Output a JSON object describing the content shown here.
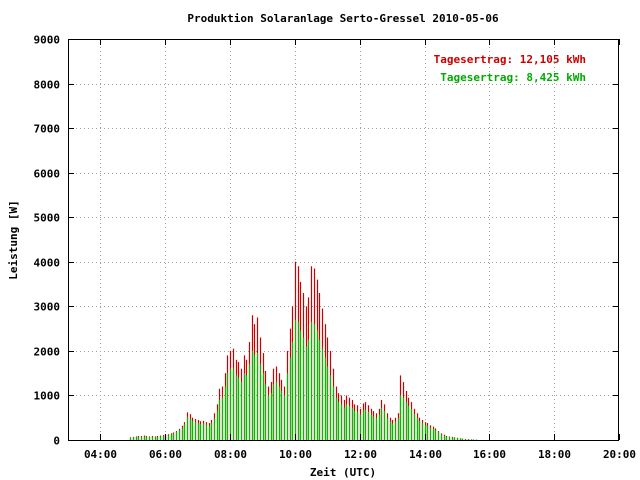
{
  "chart_data": {
    "type": "bar",
    "title": "Produktion Solaranlage Serto-Gressel 2010-05-06",
    "xlabel": "Zeit (UTC)",
    "ylabel": "Leistung [W]",
    "ylim": [
      0,
      9000
    ],
    "yticks": [
      0,
      1000,
      2000,
      3000,
      4000,
      5000,
      6000,
      7000,
      8000,
      9000
    ],
    "xlim_hours": [
      3,
      20
    ],
    "xtick_labels": [
      "04:00",
      "06:00",
      "08:00",
      "10:00",
      "12:00",
      "14:00",
      "16:00",
      "18:00",
      "20:00"
    ],
    "xtick_hours": [
      4,
      6,
      8,
      10,
      12,
      14,
      16,
      18,
      20
    ],
    "grid": true,
    "legend_placement": "top-right",
    "sample_interval_minutes": 5,
    "series": [
      {
        "name": "Tagesertrag: 12,105 kWh",
        "color": "#cc0000",
        "start_hour": 4.92,
        "values": [
          60,
          70,
          80,
          90,
          90,
          100,
          90,
          80,
          90,
          80,
          90,
          100,
          110,
          120,
          130,
          150,
          170,
          200,
          250,
          320,
          400,
          620,
          580,
          500,
          470,
          450,
          420,
          430,
          400,
          380,
          450,
          600,
          800,
          1150,
          1200,
          1500,
          1900,
          2000,
          2050,
          1800,
          1750,
          1600,
          1900,
          1800,
          2200,
          2800,
          2600,
          2750,
          2300,
          1950,
          1550,
          1200,
          1300,
          1600,
          1650,
          1500,
          1350,
          1200,
          2000,
          2500,
          3000,
          4000,
          3900,
          3550,
          3300,
          3000,
          3200,
          3900,
          3850,
          3600,
          3300,
          2950,
          2600,
          2300,
          2000,
          1600,
          1200,
          1050,
          1000,
          900,
          1000,
          950,
          900,
          800,
          780,
          700,
          820,
          850,
          780,
          700,
          650,
          600,
          700,
          900,
          800,
          600,
          500,
          450,
          500,
          600,
          1450,
          1300,
          1100,
          950,
          850,
          700,
          600,
          500,
          450,
          400,
          380,
          330,
          300,
          260,
          200,
          150,
          120,
          90,
          80,
          70,
          60,
          50,
          40,
          30,
          25,
          20,
          15,
          10,
          8
        ]
      },
      {
        "name": "Tagesertrag: 8,425 kWh",
        "color": "#00bb00",
        "start_hour": 4.92,
        "values": [
          50,
          60,
          65,
          70,
          70,
          75,
          70,
          65,
          70,
          65,
          70,
          80,
          90,
          100,
          110,
          130,
          150,
          180,
          220,
          280,
          350,
          520,
          480,
          420,
          400,
          380,
          360,
          370,
          340,
          320,
          380,
          480,
          650,
          900,
          950,
          1200,
          1500,
          1600,
          1600,
          1450,
          1400,
          1300,
          1500,
          1450,
          1700,
          2000,
          1900,
          1950,
          1700,
          1500,
          1250,
          1000,
          1050,
          1250,
          1300,
          1200,
          1100,
          1000,
          1500,
          1850,
          2200,
          2700,
          2650,
          2450,
          2300,
          2100,
          2250,
          2650,
          2600,
          2450,
          2250,
          2050,
          1850,
          1650,
          1450,
          1200,
          950,
          850,
          800,
          730,
          800,
          760,
          720,
          650,
          630,
          570,
          660,
          680,
          630,
          570,
          530,
          490,
          570,
          720,
          650,
          490,
          410,
          370,
          410,
          490,
          1000,
          950,
          850,
          760,
          690,
          580,
          500,
          420,
          380,
          340,
          320,
          280,
          255,
          220,
          170,
          130,
          100,
          75,
          68,
          60,
          50,
          42,
          34,
          26,
          21,
          17,
          13,
          8,
          6
        ]
      }
    ]
  }
}
